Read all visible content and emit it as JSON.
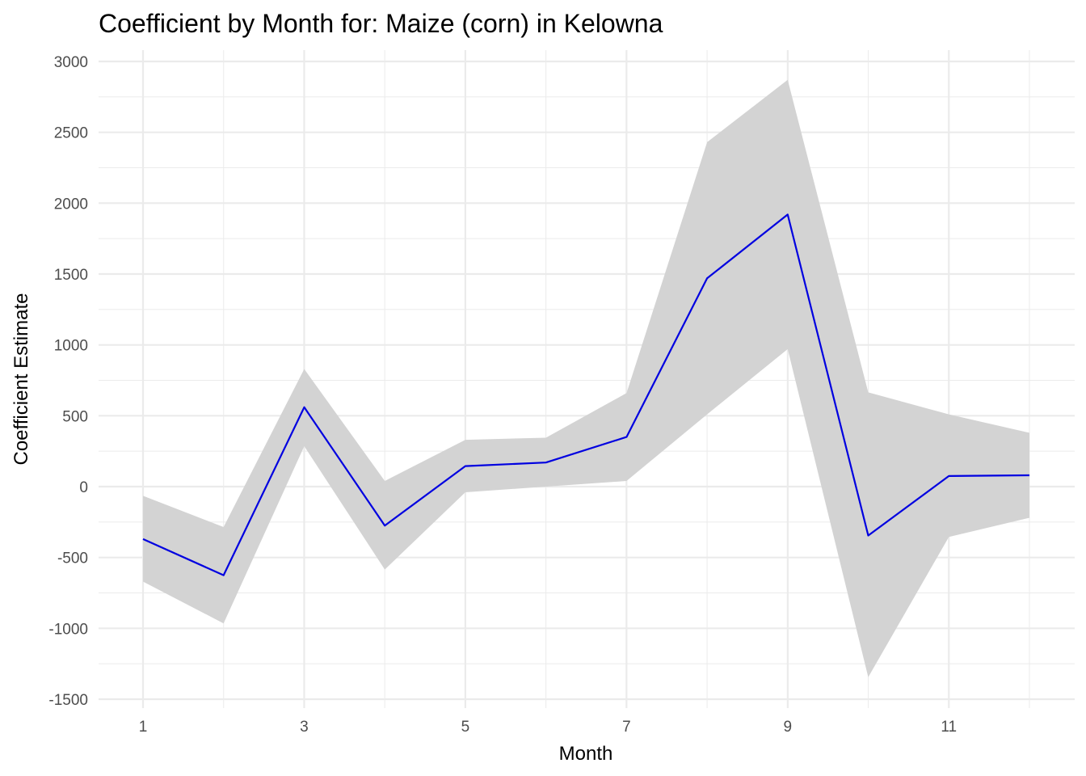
{
  "chart_data": {
    "type": "line",
    "title": "Coefficient by Month for: Maize (corn) in Kelowna",
    "xlabel": "Month",
    "ylabel": "Coefficient Estimate",
    "xlim": [
      0.45,
      12.55
    ],
    "ylim": [
      -1500,
      3000
    ],
    "x_ticks": [
      1,
      3,
      5,
      7,
      9,
      11
    ],
    "x_tick_labels": [
      "1",
      "3",
      "5",
      "7",
      "9",
      "11"
    ],
    "y_ticks": [
      -1500,
      -1000,
      -500,
      0,
      500,
      1000,
      1500,
      2000,
      2500,
      3000
    ],
    "y_tick_labels": [
      "-1500",
      "-1000",
      "-500",
      "0",
      "500",
      "1000",
      "1500",
      "2000",
      "2500",
      "3000"
    ],
    "grid": true,
    "x": [
      1,
      2,
      3,
      4,
      5,
      6,
      7,
      8,
      9,
      10,
      11,
      12
    ],
    "series": [
      {
        "values": [
          -370,
          -625,
          560,
          -275,
          145,
          170,
          350,
          1470,
          1920,
          -345,
          75,
          80
        ]
      }
    ],
    "ribbon": {
      "lower": [
        -670,
        -965,
        285,
        -585,
        -40,
        0,
        40,
        510,
        970,
        -1345,
        -355,
        -220
      ],
      "upper": [
        -65,
        -285,
        830,
        40,
        330,
        345,
        660,
        2430,
        2870,
        665,
        510,
        380
      ]
    },
    "colors": {
      "line": "#0000e0",
      "ribbon": "#d3d3d3",
      "grid": "#ebebeb",
      "tick_text": "#4d4d4d"
    }
  }
}
